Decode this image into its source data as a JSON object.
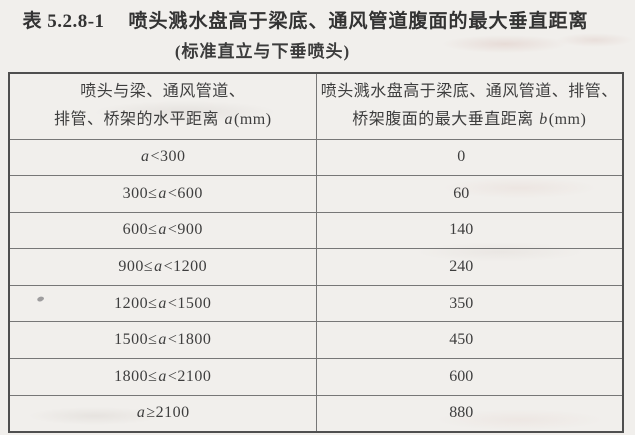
{
  "caption": {
    "number": "表 5.2.8-1",
    "title": "喷头溅水盘高于梁底、通风管道腹面的最大垂直距离",
    "subtitle": "(标准直立与下垂喷头)"
  },
  "table": {
    "header": {
      "left": {
        "line1": "喷头与梁、通风管道、",
        "line2_pre": "排管、桥架的水平距离 ",
        "var": "a",
        "line2_post": "(mm)"
      },
      "right": {
        "line1": "喷头溅水盘高于梁底、通风管道、排管、",
        "line2_pre": "桥架腹面的最大垂直距离 ",
        "var": "b",
        "line2_post": "(mm)"
      }
    },
    "rows": [
      {
        "pre": "",
        "var": "a",
        "post": "<300",
        "value": "0"
      },
      {
        "pre": "300≤",
        "var": "a",
        "post": "<600",
        "value": "60"
      },
      {
        "pre": "600≤",
        "var": "a",
        "post": "<900",
        "value": "140"
      },
      {
        "pre": "900≤",
        "var": "a",
        "post": "<1200",
        "value": "240"
      },
      {
        "pre": "1200≤",
        "var": "a",
        "post": "<1500",
        "value": "350"
      },
      {
        "pre": "1500≤",
        "var": "a",
        "post": "<1800",
        "value": "450"
      },
      {
        "pre": "1800≤",
        "var": "a",
        "post": "<2100",
        "value": "600"
      },
      {
        "pre": "",
        "var": "a",
        "post": "≥2100",
        "value": "880"
      }
    ]
  }
}
